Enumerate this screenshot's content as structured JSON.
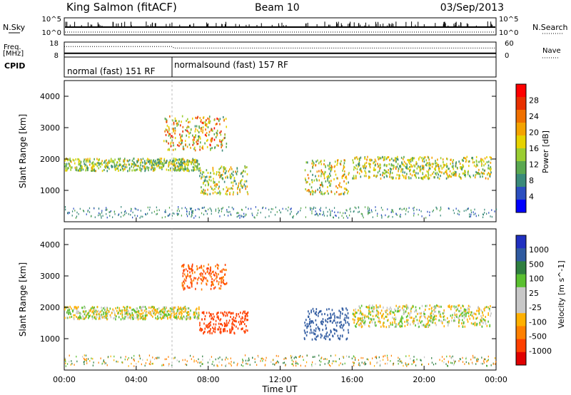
{
  "header": {
    "station": "King Salmon (fitACF)",
    "beam": "Beam 10",
    "date": "03/Sep/2013"
  },
  "top_panel": {
    "nsky_label": "N.Sky",
    "nsky_ticks": [
      "10^5",
      "10^0"
    ],
    "nsearch_label": "N.Search",
    "nsearch_ticks": [
      "10^5",
      "10^0"
    ],
    "freq_label": "Freq.",
    "freq_unit": "[MHz]",
    "freq_ticks": [
      "18",
      "8"
    ],
    "nave_label": "Nave",
    "nave_ticks": [
      "60",
      "0"
    ],
    "cpid_label": "CPID",
    "modes": [
      {
        "label": "normal (fast) 151 RF",
        "start_hour": 0,
        "end_hour": 6
      },
      {
        "label": "normalsound (fast) 157 RF",
        "start_hour": 6,
        "end_hour": 24
      }
    ]
  },
  "colors": {
    "power_scale": [
      "#0000ff",
      "#2b4fc0",
      "#3a8a7a",
      "#5aa850",
      "#9acd32",
      "#e6d200",
      "#f4a300",
      "#f07000",
      "#e83000",
      "#ff0000"
    ],
    "velocity_scale": [
      "#2030c0",
      "#2f5aa0",
      "#2f7f40",
      "#5ac030",
      "#c8c8c8",
      "#c8c8c8",
      "#ffb000",
      "#ff8000",
      "#ff4000",
      "#e00000"
    ]
  },
  "chart_data": [
    {
      "type": "line",
      "title": "King Salmon (fitACF)  Beam 10  03/Sep/2013",
      "panel": "N.Sky / N.Search",
      "y_left_ticks": [
        "10^5",
        "10^0"
      ],
      "y_right_ticks": [
        "10^5",
        "10^0"
      ],
      "xlim": [
        0,
        24
      ],
      "series": [
        {
          "name": "N.Sky",
          "style": "solid"
        },
        {
          "name": "N.Search",
          "style": "dotted"
        }
      ]
    },
    {
      "type": "line",
      "panel": "Freq. / Nave",
      "ylabel_left": "Freq. [MHz]",
      "ylabel_right": "Nave",
      "y_left_ticks": [
        "18",
        "8"
      ],
      "y_right_ticks": [
        "60",
        "0"
      ],
      "xlim": [
        0,
        24
      ],
      "series": [
        {
          "name": "Freq.",
          "style": "solid",
          "x": [
            0,
            24
          ],
          "y": [
            10.5,
            10.5
          ]
        },
        {
          "name": "Nave",
          "style": "dotted",
          "x": [
            0,
            6,
            6.1,
            24
          ],
          "y": [
            42,
            42,
            36,
            36
          ]
        }
      ]
    },
    {
      "type": "heatmap",
      "panel": "Power",
      "xlabel": "Time UT",
      "ylabel": "Slant Range [km]",
      "xlim": [
        0,
        24
      ],
      "ylim": [
        0,
        4500
      ],
      "x_ticks": [
        "00:00",
        "04:00",
        "08:00",
        "12:00",
        "16:00",
        "20:00",
        "00:00"
      ],
      "y_ticks": [
        1000,
        2000,
        3000,
        4000
      ],
      "colorbar_label": "Power [dB]",
      "colorbar_ticks": [
        4,
        8,
        12,
        16,
        20,
        24,
        28
      ],
      "features": [
        {
          "name": "main echo band",
          "t_start": 0.0,
          "t_end": 7.5,
          "range_start": 1650,
          "range_end": 2050,
          "peak_power_db": 18
        },
        {
          "name": "upper band",
          "t_start": 5.5,
          "t_end": 9.0,
          "range_start": 2300,
          "range_end": 3400,
          "peak_power_db": 26
        },
        {
          "name": "lower patch",
          "t_start": 7.5,
          "t_end": 10.2,
          "range_start": 900,
          "range_end": 1800,
          "peak_power_db": 20
        },
        {
          "name": "post-noon patch",
          "t_start": 13.3,
          "t_end": 15.8,
          "range_start": 900,
          "range_end": 2000,
          "peak_power_db": 22
        },
        {
          "name": "evening band",
          "t_start": 16.0,
          "t_end": 23.7,
          "range_start": 1400,
          "range_end": 2100,
          "peak_power_db": 20
        }
      ]
    },
    {
      "type": "heatmap",
      "panel": "Velocity",
      "xlabel": "Time UT",
      "ylabel": "Slant Range [km]",
      "xlim": [
        0,
        24
      ],
      "ylim": [
        0,
        4500
      ],
      "x_ticks": [
        "00:00",
        "04:00",
        "08:00",
        "12:00",
        "16:00",
        "20:00",
        "00:00"
      ],
      "y_ticks": [
        1000,
        2000,
        3000,
        4000
      ],
      "colorbar_label": "Velocity [m s^-1]",
      "colorbar_ticks": [
        1000,
        500,
        100,
        25,
        -25,
        -100,
        -500,
        -1000
      ],
      "features": [
        {
          "name": "ground scatter band",
          "t_start": 0.0,
          "t_end": 7.5,
          "range_start": 1650,
          "range_end": 2050,
          "velocity": 0
        },
        {
          "name": "upper band",
          "t_start": 6.5,
          "t_end": 9.0,
          "range_start": 2600,
          "range_end": 3400,
          "velocity": -300
        },
        {
          "name": "lower patch",
          "t_start": 7.5,
          "t_end": 10.2,
          "range_start": 1200,
          "range_end": 1900,
          "velocity": -500
        },
        {
          "name": "post-noon patch",
          "t_start": 13.3,
          "t_end": 15.8,
          "range_start": 1000,
          "range_end": 2000,
          "velocity": 500
        },
        {
          "name": "evening ground scatter",
          "t_start": 16.0,
          "t_end": 23.7,
          "range_start": 1400,
          "range_end": 2100,
          "velocity": 0
        }
      ]
    }
  ]
}
